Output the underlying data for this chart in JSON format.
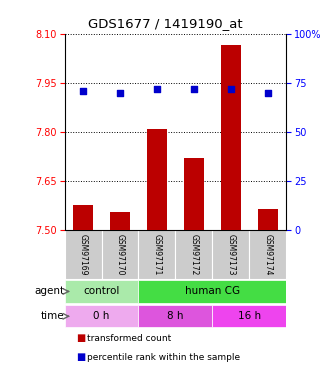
{
  "title": "GDS1677 / 1419190_at",
  "samples": [
    "GSM97169",
    "GSM97170",
    "GSM97171",
    "GSM97172",
    "GSM97173",
    "GSM97174"
  ],
  "bar_values": [
    7.575,
    7.555,
    7.81,
    7.72,
    8.065,
    7.565
  ],
  "bar_bottom": 7.5,
  "percentile_values": [
    71,
    70,
    72,
    72,
    72,
    70
  ],
  "percentile_scale_min": 0,
  "percentile_scale_max": 100,
  "ylim_left": [
    7.5,
    8.1
  ],
  "yticks_left": [
    7.5,
    7.65,
    7.8,
    7.95,
    8.1
  ],
  "yticks_right": [
    0,
    25,
    50,
    75,
    100
  ],
  "bar_color": "#bb0000",
  "dot_color": "#0000cc",
  "agent_groups": [
    {
      "label": "control",
      "span": [
        0,
        2
      ],
      "color": "#aaeaaa"
    },
    {
      "label": "human CG",
      "span": [
        2,
        6
      ],
      "color": "#44dd44"
    }
  ],
  "time_groups": [
    {
      "label": "0 h",
      "span": [
        0,
        2
      ],
      "color": "#eeaaee"
    },
    {
      "label": "8 h",
      "span": [
        2,
        4
      ],
      "color": "#dd55dd"
    },
    {
      "label": "16 h",
      "span": [
        4,
        6
      ],
      "color": "#ee44ee"
    }
  ],
  "legend_items": [
    {
      "label": "transformed count",
      "color": "#bb0000"
    },
    {
      "label": "percentile rank within the sample",
      "color": "#0000cc"
    }
  ]
}
